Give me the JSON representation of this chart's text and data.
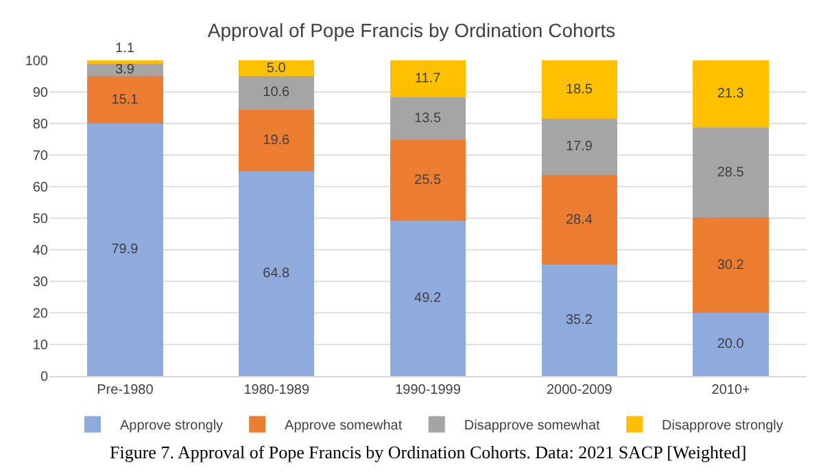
{
  "chart_data": {
    "type": "bar",
    "stacked": true,
    "title": "Approval of Pope Francis by Ordination Cohorts",
    "categories": [
      "Pre-1980",
      "1980-1989",
      "1990-1999",
      "2000-2009",
      "2010+"
    ],
    "series": [
      {
        "name": "Approve strongly",
        "color": "#8faadc",
        "values": [
          79.9,
          64.8,
          49.2,
          35.2,
          20.0
        ],
        "value_labels": [
          "79.9",
          "64.8",
          "49.2",
          "35.2",
          "20.0"
        ]
      },
      {
        "name": "Approve somewhat",
        "color": "#ed7d31",
        "values": [
          15.1,
          19.6,
          25.5,
          28.4,
          30.2
        ],
        "value_labels": [
          "15.1",
          "19.6",
          "25.5",
          "28.4",
          "30.2"
        ]
      },
      {
        "name": "Disapprove somewhat",
        "color": "#a5a5a5",
        "values": [
          3.9,
          10.6,
          13.5,
          17.9,
          28.5
        ],
        "value_labels": [
          "3.9",
          "10.6",
          "13.5",
          "17.9",
          "28.5"
        ]
      },
      {
        "name": "Disapprove strongly",
        "color": "#ffc000",
        "values": [
          1.1,
          5.0,
          11.7,
          18.5,
          21.3
        ],
        "value_labels": [
          "1.1",
          "5.0",
          "11.7",
          "18.5",
          "21.3"
        ]
      }
    ],
    "ylim": [
      0,
      100
    ],
    "yticks": [
      0,
      10,
      20,
      30,
      40,
      50,
      60,
      70,
      80,
      90,
      100
    ],
    "grid": "y",
    "legend": "bottom",
    "annotations": [
      "Figure 7. Approval of Pope Francis by Ordination Cohorts. Data: 2021 SACP [Weighted]"
    ]
  }
}
